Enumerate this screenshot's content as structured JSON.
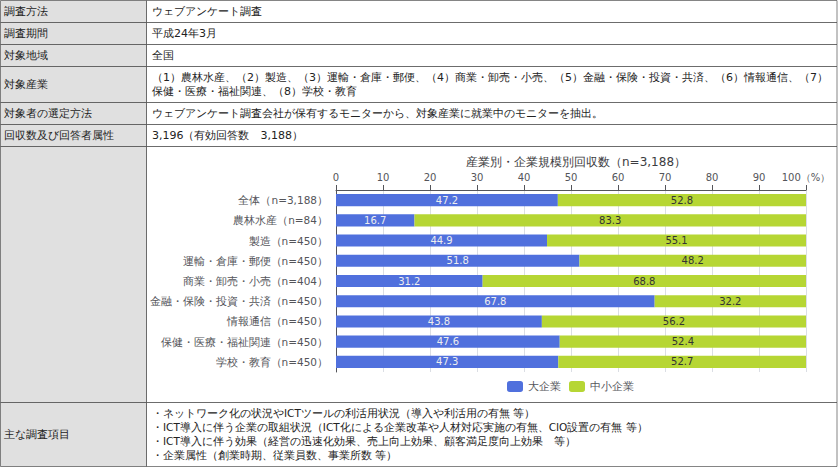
{
  "chart_data": {
    "type": "bar",
    "orientation": "horizontal",
    "stacked": true,
    "data_labels": true,
    "grid": true,
    "legend": "bottom",
    "title": "産業別・企業規模別回収数（n=3,188）",
    "categories": [
      "全体（n=3,188）",
      "農林水産（n=84）",
      "製造（n=450）",
      "運輸・倉庫・郵便（n=450）",
      "商業・卸売・小売（n=404）",
      "金融・保険・投資・共済（n=450）",
      "情報通信（n=450）",
      "保健・医療・福祉関連（n=450）",
      "学校・教育（n=450）"
    ],
    "series": [
      {
        "name": "大企業",
        "values": [
          47.2,
          16.7,
          44.9,
          51.8,
          31.2,
          67.8,
          43.8,
          47.6,
          47.3
        ]
      },
      {
        "name": "中小企業",
        "values": [
          52.8,
          83.3,
          55.1,
          48.2,
          68.8,
          32.2,
          56.2,
          52.4,
          52.7
        ]
      }
    ],
    "xlim": [
      0,
      100
    ],
    "xticks": [
      0,
      10,
      20,
      30,
      40,
      50,
      60,
      70,
      80,
      90,
      {
        "value": 100,
        "label": "100（%）"
      }
    ],
    "annotations": [
      {
        "label": "調査方法",
        "lines": [
          "ウェブアンケート調査"
        ]
      },
      {
        "label": "調査期間",
        "lines": [
          "平成24年3月"
        ]
      },
      {
        "label": "対象地域",
        "lines": [
          "全国"
        ]
      },
      {
        "label": "対象産業",
        "lines": [
          "（1）農林水産、（2）製造、（3）運輸・倉庫・郵便、（4）商業・卸売・小売、（5）金融・保険・投資・共済、（6）情報通信、（7）保健・医療・福祉関連、（8）学校・教育"
        ]
      },
      {
        "label": "対象者の選定方法",
        "lines": [
          "ウェブアンケート調査会社が保有するモニターから、対象産業に就業中のモニターを抽出。"
        ]
      },
      {
        "label": "回収数及び回答者属性",
        "lines": [
          "3,196（有効回答数　3,188）"
        ]
      },
      {
        "label": "主な調査項目",
        "lines": [
          "・ネットワーク化の状況やICTツールの利活用状況（導入や利活用の有無 等）",
          "・ICT導入に伴う企業の取組状況（ICT化による企業改革や人材対応実施の有無、CIO設置の有無 等）",
          "・ICT導入に伴う効果（経営の迅速化効果、売上向上効果、顧客満足度向上効果　等）",
          "・企業属性（創業時期、従業員数、事業所数 等）"
        ]
      }
    ]
  }
}
